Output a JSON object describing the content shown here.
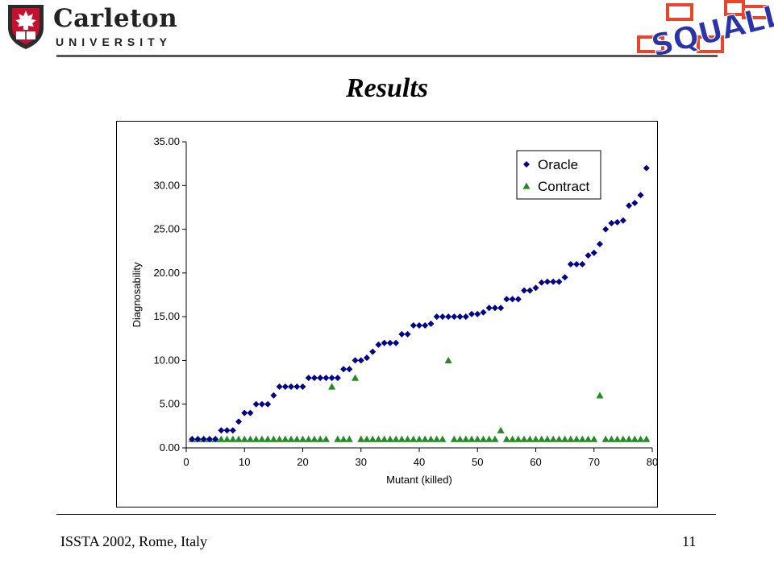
{
  "header": {
    "logo_name": "Carleton",
    "logo_sub": "UNIVERSITY",
    "squall_logo": "SQUALL"
  },
  "slide": {
    "title": "Results"
  },
  "colors": {
    "oracle": "#00008B",
    "contract": "#228B22",
    "squall_text": "#2a33a8",
    "squall_box": "#e8452c",
    "shield": "#c8102e"
  },
  "footer": {
    "left": "ISSTA 2002, Rome, Italy",
    "right": "11"
  },
  "chart_data": {
    "type": "scatter",
    "title": "",
    "xlabel": "Mutant (killed)",
    "ylabel": "Diagnosability",
    "xlim": [
      0,
      80
    ],
    "ylim": [
      0,
      35
    ],
    "xticks": [
      "0",
      "10",
      "20",
      "30",
      "40",
      "50",
      "60",
      "70",
      "80"
    ],
    "yticks": [
      "0.00",
      "5.00",
      "10.00",
      "15.00",
      "20.00",
      "25.00",
      "30.00",
      "35.00"
    ],
    "grid": false,
    "legend_position": "top-right",
    "series": [
      {
        "name": "Oracle",
        "marker": "diamond",
        "x": [
          1,
          2,
          3,
          4,
          5,
          6,
          7,
          8,
          9,
          10,
          11,
          12,
          13,
          14,
          15,
          16,
          17,
          18,
          19,
          20,
          21,
          22,
          23,
          24,
          25,
          26,
          27,
          28,
          29,
          30,
          31,
          32,
          33,
          34,
          35,
          36,
          37,
          38,
          39,
          40,
          41,
          42,
          43,
          44,
          45,
          46,
          47,
          48,
          49,
          50,
          51,
          52,
          53,
          54,
          55,
          56,
          57,
          58,
          59,
          60,
          61,
          62,
          63,
          64,
          65,
          66,
          67,
          68,
          69,
          70,
          71,
          72,
          73,
          74,
          75,
          76,
          77,
          78,
          79
        ],
        "y": [
          1,
          1,
          1,
          1,
          1,
          2,
          2,
          2,
          3,
          4,
          4,
          5,
          5,
          5,
          6,
          7,
          7,
          7,
          7,
          7,
          8,
          8,
          8,
          8,
          8,
          8,
          9,
          9,
          10,
          10,
          10.3,
          11,
          11.8,
          12,
          12,
          12,
          13,
          13,
          14,
          14,
          14,
          14.2,
          15,
          15,
          15,
          15,
          15,
          15,
          15.3,
          15.3,
          15.5,
          16,
          16,
          16,
          17,
          17,
          17,
          18,
          18,
          18.3,
          18.9,
          19,
          19,
          19,
          19.5,
          21,
          21,
          21,
          22,
          22.3,
          23.3,
          25,
          25.7,
          25.8,
          26,
          27.7,
          28,
          28.9,
          32
        ]
      },
      {
        "name": "Contract",
        "marker": "triangle",
        "x": [
          1,
          2,
          3,
          4,
          5,
          6,
          7,
          8,
          9,
          10,
          11,
          12,
          13,
          14,
          15,
          16,
          17,
          18,
          19,
          20,
          21,
          22,
          23,
          24,
          25,
          26,
          27,
          28,
          29,
          30,
          31,
          32,
          33,
          34,
          35,
          36,
          37,
          38,
          39,
          40,
          41,
          42,
          43,
          44,
          45,
          46,
          47,
          48,
          49,
          50,
          51,
          52,
          53,
          54,
          55,
          56,
          57,
          58,
          59,
          60,
          61,
          62,
          63,
          64,
          65,
          66,
          67,
          68,
          69,
          70,
          71,
          72,
          73,
          74,
          75,
          76,
          77,
          78,
          79
        ],
        "y": [
          1,
          1,
          1,
          1,
          1,
          1,
          1,
          1,
          1,
          1,
          1,
          1,
          1,
          1,
          1,
          1,
          1,
          1,
          1,
          1,
          1,
          1,
          1,
          1,
          7,
          1,
          1,
          1,
          8,
          1,
          1,
          1,
          1,
          1,
          1,
          1,
          1,
          1,
          1,
          1,
          1,
          1,
          1,
          1,
          10,
          1,
          1,
          1,
          1,
          1,
          1,
          1,
          1,
          2,
          1,
          1,
          1,
          1,
          1,
          1,
          1,
          1,
          1,
          1,
          1,
          1,
          1,
          1,
          1,
          1,
          6,
          1,
          1,
          1,
          1,
          1,
          1,
          1,
          1
        ]
      }
    ]
  }
}
